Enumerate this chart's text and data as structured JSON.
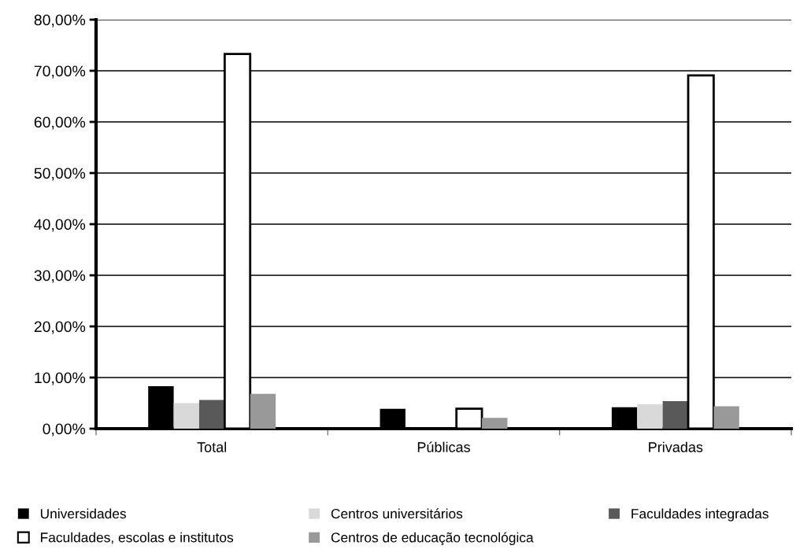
{
  "chart_data": {
    "type": "bar",
    "categories": [
      "Total",
      "Públicas",
      "Privadas"
    ],
    "series": [
      {
        "name": "Universidades",
        "color": "#000000",
        "values": [
          8.3,
          3.9,
          4.2
        ]
      },
      {
        "name": "Centros universitários",
        "color": "#d9d9d9",
        "values": [
          5.0,
          0,
          4.8
        ]
      },
      {
        "name": "Faculdades integradas",
        "color": "#595959",
        "values": [
          5.6,
          0,
          5.4
        ]
      },
      {
        "name": "Faculdades, escolas e institutos",
        "color": "#ffffff",
        "values": [
          73.3,
          3.9,
          69.1
        ]
      },
      {
        "name": "Centros de educação tecnológica",
        "color": "#999999",
        "values": [
          6.8,
          2.1,
          4.4
        ]
      }
    ],
    "ylim": [
      0,
      80
    ],
    "yticks": [
      {
        "value": 0,
        "label": "0,00%"
      },
      {
        "value": 10,
        "label": "10,00%"
      },
      {
        "value": 20,
        "label": "20,00%"
      },
      {
        "value": 30,
        "label": "30,00%"
      },
      {
        "value": 40,
        "label": "40,00%"
      },
      {
        "value": 50,
        "label": "50,00%"
      },
      {
        "value": 60,
        "label": "60,00%"
      },
      {
        "value": 70,
        "label": "70,00%"
      },
      {
        "value": 80,
        "label": "80,00%"
      }
    ],
    "grid": "y",
    "legend": "bottom"
  }
}
